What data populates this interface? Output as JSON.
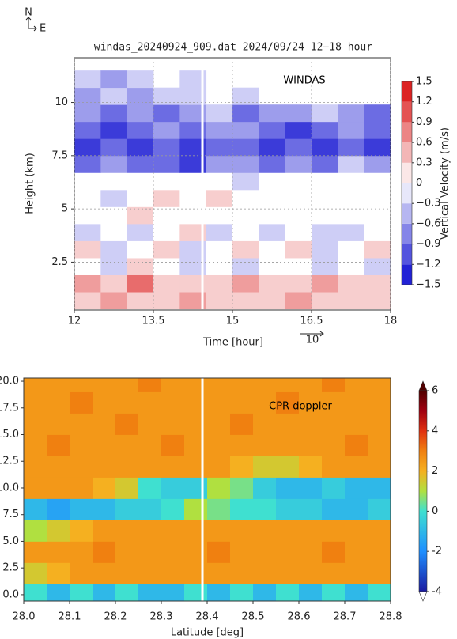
{
  "chart_data": [
    {
      "type": "heatmap",
      "title": "windas_20240924_909.dat 2024/09/24 12−18 hour",
      "annotation": "WINDAS",
      "compass": [
        "N",
        "E"
      ],
      "arrow_scale_label": "10",
      "x_label": "Time [hour]",
      "y_label": "Height (km)",
      "colorbar_label": "Vertical Velocity (m/s)",
      "xlim": [
        12,
        18
      ],
      "ylim": [
        0.25,
        12.1
      ],
      "xticks": [
        12,
        13.5,
        15,
        16.5,
        18
      ],
      "yticks": [
        2.5,
        5,
        7.5,
        10
      ],
      "grid": true,
      "x": [
        12.25,
        12.75,
        13.25,
        13.75,
        14.25,
        14.75,
        15.25,
        15.75,
        16.25,
        16.75,
        17.25,
        17.75
      ],
      "y": [
        0.7,
        1.5,
        2.3,
        3.1,
        3.9,
        4.7,
        5.5,
        6.3,
        7.1,
        7.9,
        8.7,
        9.5,
        10.3,
        11.1
      ],
      "z": [
        [
          0.3,
          0.6,
          0.3,
          0.3,
          0.6,
          0.3,
          0.3,
          0.3,
          0.6,
          0.3,
          0.3,
          0.3
        ],
        [
          0.6,
          0.3,
          0.9,
          0.3,
          0.3,
          0.3,
          0.6,
          0.3,
          0.3,
          0.6,
          0.3,
          0.3
        ],
        [
          0,
          -0.3,
          0.3,
          0,
          -0.3,
          0,
          -0.3,
          0,
          0,
          -0.3,
          0,
          -0.3
        ],
        [
          0.3,
          -0.3,
          0,
          0.3,
          -0.3,
          0,
          0.3,
          0,
          0.3,
          -0.3,
          0,
          0.3
        ],
        [
          -0.3,
          0,
          -0.3,
          0,
          0.3,
          -0.3,
          0,
          -0.3,
          0,
          -0.3,
          -0.3,
          0
        ],
        [
          0,
          0,
          0.3,
          0,
          0,
          0,
          0,
          0,
          0,
          0,
          0,
          0
        ],
        [
          0,
          -0.3,
          0,
          0.3,
          0,
          0.3,
          0,
          0,
          0,
          0,
          0,
          0
        ],
        [
          0,
          0,
          0,
          0,
          0,
          0,
          -0.3,
          0,
          0,
          0,
          0,
          0
        ],
        [
          -0.9,
          -0.6,
          -0.9,
          -0.9,
          -1.2,
          -0.6,
          -0.6,
          -0.9,
          -0.6,
          -0.9,
          -0.3,
          -0.6
        ],
        [
          -1.2,
          -0.9,
          -1.2,
          -0.9,
          -1.2,
          -0.9,
          -0.9,
          -1.2,
          -0.9,
          -1.2,
          -0.9,
          -1.2
        ],
        [
          -0.9,
          -1.2,
          -0.9,
          -0.6,
          -0.9,
          -0.6,
          -0.6,
          -0.9,
          -1.2,
          -0.9,
          -0.6,
          -0.9
        ],
        [
          -0.6,
          -0.9,
          -0.6,
          -0.9,
          -0.6,
          -0.3,
          -0.9,
          -0.6,
          -0.6,
          -0.3,
          -0.6,
          -0.9
        ],
        [
          -0.6,
          -0.3,
          -0.6,
          -0.3,
          -0.3,
          null,
          -0.3,
          null,
          null,
          null,
          null,
          null
        ],
        [
          -0.3,
          -0.6,
          -0.3,
          null,
          -0.3,
          null,
          null,
          null,
          null,
          null,
          null,
          null
        ]
      ],
      "clim": [
        -1.5,
        1.5
      ],
      "color_stops": [
        [
          -1.5,
          "#0a0ad0"
        ],
        [
          0,
          "#ffffff"
        ],
        [
          1.5,
          "#d80a0a"
        ]
      ],
      "colorbar_ticks": [
        {
          "value": -1.5,
          "label": "−1.5"
        },
        {
          "value": -1.2,
          "label": "−1.2"
        },
        {
          "value": -0.9,
          "label": "−0.9"
        },
        {
          "value": -0.6,
          "label": "−0.6"
        },
        {
          "value": -0.3,
          "label": "−0.3"
        },
        0,
        0.3,
        0.6,
        0.9,
        1.2,
        1.5
      ],
      "colorbar_discrete": true
    },
    {
      "type": "heatmap",
      "annotation": "CPR doppler",
      "x_label": "Latitude [deg]",
      "xlim": [
        28.0,
        28.8
      ],
      "ylim": [
        -0.6,
        20.3
      ],
      "xticks": [
        {
          "value": 28.0,
          "label": "28.0"
        },
        28.1,
        28.2,
        28.3,
        28.4,
        28.5,
        28.6,
        28.7,
        {
          "value": 28.8,
          "label": "28.8"
        }
      ],
      "yticks": [
        {
          "value": 0,
          "label": "0.0"
        },
        2.5,
        {
          "value": 5,
          "label": "5.0"
        },
        7.5,
        {
          "value": 10,
          "label": "10.0"
        },
        12.5,
        {
          "value": 15,
          "label": "15.0"
        },
        17.5,
        {
          "value": 20,
          "label": "20.0"
        }
      ],
      "grid": false,
      "x": [
        28.025,
        28.075,
        28.125,
        28.175,
        28.225,
        28.275,
        28.325,
        28.375,
        28.425,
        28.475,
        28.525,
        28.575,
        28.625,
        28.675,
        28.725,
        28.775
      ],
      "y": [
        0,
        2,
        4,
        6,
        8,
        10,
        12,
        14,
        16,
        18,
        20
      ],
      "z": [
        [
          0,
          -1,
          0,
          -1,
          0,
          -1,
          -1,
          0,
          -1,
          0,
          -1,
          0,
          -1,
          0,
          -1,
          0
        ],
        [
          1.5,
          2,
          2.5,
          2.5,
          2.5,
          2.5,
          2.5,
          2.5,
          2.5,
          2.5,
          2.5,
          2.5,
          2.5,
          2.5,
          2.5,
          2.5
        ],
        [
          2.5,
          2.5,
          2.5,
          3,
          2.5,
          2.5,
          2.5,
          2.5,
          3,
          2.5,
          2.5,
          2.5,
          2.5,
          3,
          2.5,
          2.5
        ],
        [
          1,
          1.5,
          2,
          2.5,
          2.5,
          2.5,
          2.5,
          2.5,
          2.5,
          2.5,
          2.5,
          2.5,
          2.5,
          2.5,
          2.5,
          2.5
        ],
        [
          -1,
          -1.5,
          -1,
          -1,
          -0.5,
          -0.5,
          0,
          1,
          0.5,
          0,
          0,
          -0.5,
          -0.5,
          -1,
          -1,
          -0.5
        ],
        [
          2.5,
          2.5,
          2.5,
          2,
          1.5,
          0,
          -0.5,
          -0.5,
          1,
          0.5,
          -0.5,
          -1,
          -1,
          -0.5,
          -1,
          -1
        ],
        [
          2.5,
          2.5,
          2.5,
          2.5,
          2.5,
          2.5,
          2.5,
          2.5,
          2.5,
          2,
          1.5,
          1.5,
          2,
          2.5,
          2.5,
          2.5
        ],
        [
          2.5,
          3,
          2.5,
          2.5,
          2.5,
          2.5,
          3,
          2.5,
          2.5,
          2.5,
          2.5,
          2.5,
          2.5,
          2.5,
          3,
          2.5
        ],
        [
          2.5,
          2.5,
          2.5,
          2.5,
          3,
          2.5,
          2.5,
          2.5,
          2.5,
          3,
          2.5,
          2.5,
          2.5,
          2.5,
          2.5,
          2.5
        ],
        [
          2.5,
          2.5,
          3,
          2.5,
          2.5,
          2.5,
          2.5,
          2.5,
          2.5,
          2.5,
          2.5,
          3,
          2.5,
          2.5,
          2.5,
          2.5
        ],
        [
          2.5,
          2.5,
          2.5,
          2.5,
          2.5,
          3,
          2.5,
          2.5,
          2.5,
          2.5,
          2.5,
          2.5,
          2.5,
          3,
          2.5,
          2.5
        ]
      ],
      "clim": [
        -4,
        6
      ],
      "color_stops": [
        [
          -4,
          "#1a1aa0"
        ],
        [
          -2,
          "#1f8fff"
        ],
        [
          0,
          "#3fe0d0"
        ],
        [
          1,
          "#b0e040"
        ],
        [
          2,
          "#f5b020"
        ],
        [
          3,
          "#f08010"
        ],
        [
          4,
          "#e03010"
        ],
        [
          5,
          "#a00010"
        ],
        [
          6,
          "#500000"
        ]
      ],
      "colorbar_ticks": [
        -4,
        -2,
        0,
        2,
        4,
        6
      ],
      "colorbar_discrete": false
    }
  ]
}
